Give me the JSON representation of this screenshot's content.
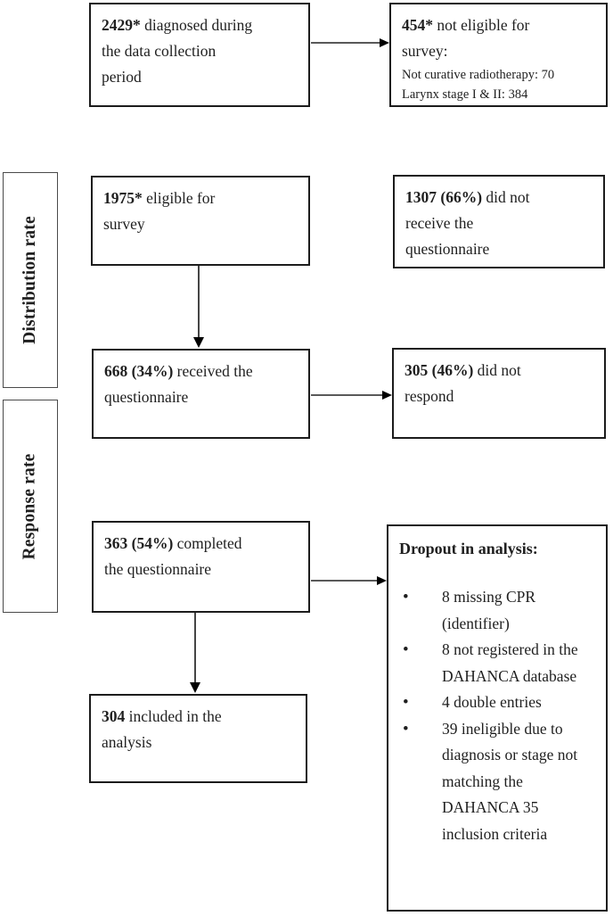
{
  "diagram": {
    "side_labels": {
      "distribution": "Distribution rate",
      "response": "Response rate"
    },
    "boxes": {
      "diagnosed": {
        "bold": "2429*",
        "text": "diagnosed during the data collection period"
      },
      "not_eligible": {
        "bold": "454*",
        "text": "not eligible for survey:",
        "detail_lines": [
          "Not curative radiotherapy: 70",
          "Larynx stage I & II: 384"
        ]
      },
      "eligible": {
        "bold": "1975*",
        "text": "eligible for survey"
      },
      "not_received": {
        "bold": "1307 (66%)",
        "text": "did not receive the questionnaire"
      },
      "received": {
        "bold": "668 (34%)",
        "text": "received the questionnaire"
      },
      "not_respond": {
        "bold": "305 (46%)",
        "text": "did not respond"
      },
      "completed": {
        "bold": "363 (54%)",
        "text": "completed the questionnaire"
      },
      "dropout": {
        "title": "Dropout in analysis:",
        "bullets": [
          "8 missing CPR (identifier)",
          "8 not registered in the DAHANCA database",
          "4 double entries",
          "39 ineligible due to diagnosis or stage not matching the DAHANCA 35 inclusion criteria"
        ]
      },
      "included": {
        "bold": "304",
        "text": "included in the analysis"
      }
    },
    "colors": {
      "border_color": "#1c1c1c",
      "label_border": "#4a4a4a",
      "arrow_line": "#595959",
      "arrowhead": "#000000",
      "text_color": "#1f1f1f",
      "bg": "#ffffff"
    }
  }
}
